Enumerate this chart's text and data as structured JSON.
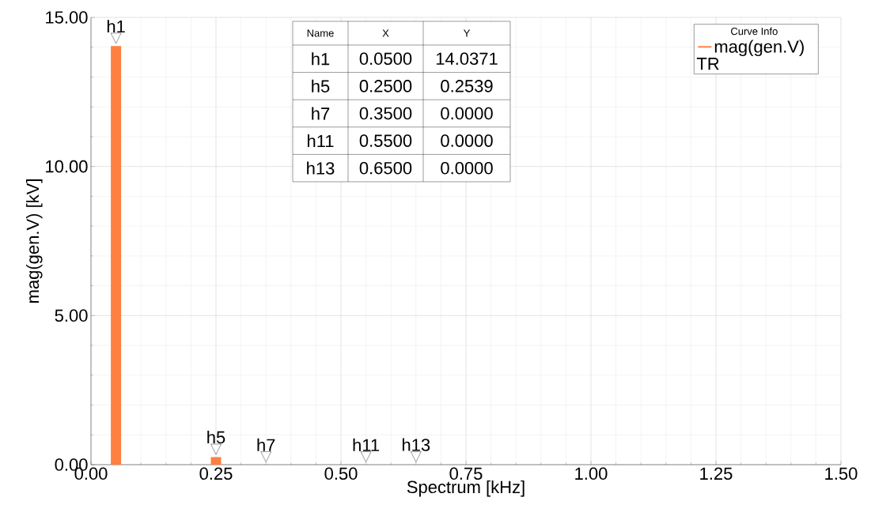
{
  "chart_data": {
    "type": "bar",
    "xlabel": "Spectrum [kHz]",
    "ylabel": "mag(gen.V) [kV]",
    "legend_title": "Curve Info",
    "x": [
      0.05,
      0.25,
      0.35,
      0.55,
      0.65
    ],
    "series": [
      {
        "name": "mag(gen.V)",
        "color": "#ff8040",
        "values": [
          14.0371,
          0.2539,
          0.0,
          0.0,
          0.0
        ]
      }
    ],
    "annotations": [
      {
        "text": "h1",
        "x": 0.05,
        "y": 14.0371
      },
      {
        "text": "h5",
        "x": 0.25,
        "y": 0.2539
      },
      {
        "text": "h7",
        "x": 0.35,
        "y": 0.0
      },
      {
        "text": "h11",
        "x": 0.55,
        "y": 0.0
      },
      {
        "text": "h13",
        "x": 0.65,
        "y": 0.0
      },
      "Name",
      "X",
      "Y",
      "0.0500",
      "0.2500",
      "0.3500",
      "0.5500",
      "0.6500",
      "14.0371",
      "0.2539",
      "0.0000",
      "0.0000",
      "0.0000",
      "TR"
    ],
    "xlim": [
      0,
      1.5
    ],
    "xticks": [
      {
        "value": 0,
        "label": "0.00"
      },
      {
        "value": 0.25,
        "label": "0.25"
      },
      {
        "value": 0.5,
        "label": "0.50"
      },
      {
        "value": 0.75,
        "label": "0.75"
      },
      {
        "value": 1.0,
        "label": "1.00"
      },
      {
        "value": 1.25,
        "label": "1.25"
      },
      {
        "value": 1.5,
        "label": "1.50"
      }
    ],
    "ylim": [
      0,
      15
    ],
    "yticks": [
      {
        "value": 0,
        "label": "0.00"
      },
      {
        "value": 5,
        "label": "5.00"
      },
      {
        "value": 10,
        "label": "10.00"
      },
      {
        "value": 15,
        "label": "15.00"
      }
    ],
    "grid": true,
    "legend": "top right"
  }
}
